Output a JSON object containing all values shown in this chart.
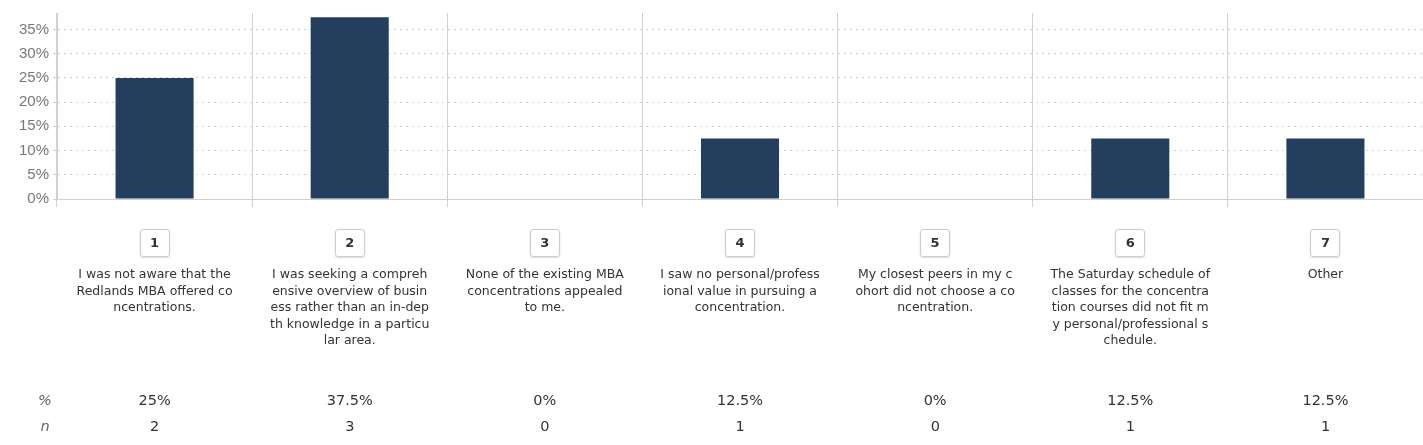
{
  "chart_data": {
    "type": "bar",
    "categories": [
      "I was not aware that the Redlands MBA offered concentrations.",
      "I was seeking a comprehensive overview of business rather than an in-depth knowledge in a particular area.",
      "None of the existing MBA concentrations appealed to me.",
      "I saw no personal/professional value in pursuing a concentration.",
      "My closest peers in my cohort did not choose a concentration.",
      "The Saturday schedule of classes for the concentration courses did not fit my personal/professional schedule.",
      "Other"
    ],
    "values": [
      25,
      37.5,
      0,
      12.5,
      0,
      12.5,
      12.5
    ],
    "value_labels": [
      "25%",
      "37.5%",
      "0%",
      "12.5%",
      "0%",
      "12.5%",
      "12.5%"
    ],
    "color": "#243f5e",
    "ylim": [
      0,
      38.4
    ],
    "yticks": [
      {
        "value": 0,
        "label": "0%"
      },
      {
        "value": 5,
        "label": "5%"
      },
      {
        "value": 10,
        "label": "10%"
      },
      {
        "value": 15,
        "label": "15%"
      },
      {
        "value": 20,
        "label": "20%"
      },
      {
        "value": 25,
        "label": "25%"
      },
      {
        "value": 30,
        "label": "30%"
      },
      {
        "value": 35,
        "label": "35%"
      }
    ],
    "grid": true,
    "annotations": [
      "%",
      "n",
      "1",
      "2",
      "3",
      "4",
      "5",
      "6",
      "7",
      "2",
      "3",
      "0",
      "1",
      "0",
      "1",
      "1"
    ]
  }
}
